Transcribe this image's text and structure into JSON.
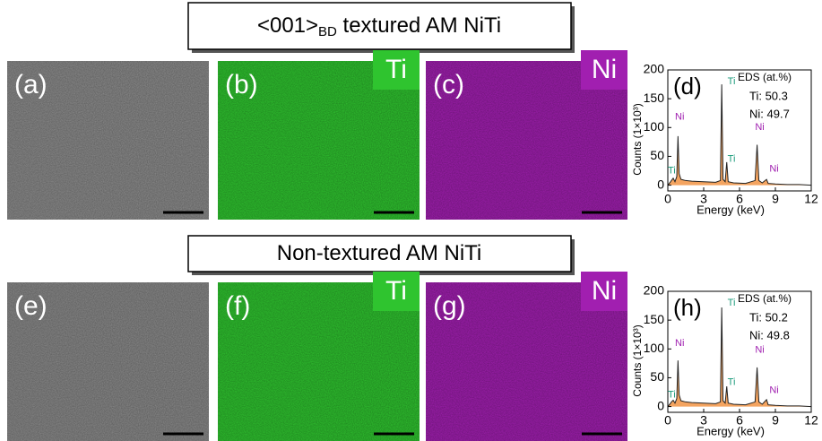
{
  "headers": [
    {
      "text": "<001>",
      "subscript": "BD",
      "rest": " textured AM NiTi"
    },
    {
      "text": "Non-textured AM NiTi"
    }
  ],
  "panels": [
    {
      "label": "(a)",
      "color": "#8c8c8c"
    },
    {
      "label": "(b)",
      "color": "#2fc42f",
      "element": "Ti"
    },
    {
      "label": "(c)",
      "color": "#a11fb0",
      "element": "Ni"
    },
    {
      "label": "(e)",
      "color": "#8a8a8a"
    },
    {
      "label": "(f)",
      "color": "#2fc42f",
      "element": "Ti"
    },
    {
      "label": "(g)",
      "color": "#a11fb0",
      "element": "Ni"
    }
  ],
  "chart_data": [
    {
      "type": "area",
      "label": "(d)",
      "legend_title": "EDS (at.%)",
      "legend_lines": [
        "Ti: 50.3",
        "Ni: 49.7"
      ],
      "xlabel": "Energy (keV)",
      "ylabel": "Counts (1×10³)",
      "xlim": [
        0,
        12
      ],
      "ylim": [
        -10,
        200
      ],
      "xticks": [
        0,
        3,
        6,
        9,
        12
      ],
      "yticks": [
        0,
        50,
        100,
        150,
        200
      ],
      "color": "#f4a460",
      "line_color": "#222222",
      "label_colors": {
        "Ti": "#1a9a7a",
        "Ni": "#a020b0"
      },
      "x": [
        0,
        0.2,
        0.3,
        0.45,
        0.6,
        0.75,
        0.85,
        0.95,
        1.1,
        1.5,
        2,
        3,
        4,
        4.4,
        4.51,
        4.62,
        4.8,
        4.93,
        5.05,
        5.5,
        6.5,
        7.3,
        7.47,
        7.62,
        7.9,
        8.26,
        8.4,
        9,
        10,
        11,
        12
      ],
      "values": [
        0,
        5,
        8,
        12,
        6,
        15,
        85,
        20,
        10,
        8,
        7,
        6,
        5,
        8,
        175,
        10,
        6,
        40,
        6,
        4,
        3,
        8,
        70,
        8,
        4,
        10,
        3,
        2,
        1,
        1,
        0
      ],
      "peak_labels": [
        {
          "text": "Ti",
          "x": 5.0,
          "y": 180
        },
        {
          "text": "Ni",
          "x": 0.6,
          "y": 118
        },
        {
          "text": "Ti",
          "x": 0.0,
          "y": 25
        },
        {
          "text": "Ti",
          "x": 5.0,
          "y": 45
        },
        {
          "text": "Ni",
          "x": 7.3,
          "y": 100
        },
        {
          "text": "Ni",
          "x": 8.5,
          "y": 28
        }
      ]
    },
    {
      "type": "area",
      "label": "(h)",
      "legend_title": "EDS (at.%)",
      "legend_lines": [
        "Ti: 50.2",
        "Ni: 49.8"
      ],
      "xlabel": "Energy (keV)",
      "ylabel": "Counts (1×10³)",
      "xlim": [
        0,
        12
      ],
      "ylim": [
        -10,
        200
      ],
      "xticks": [
        0,
        3,
        6,
        9,
        12
      ],
      "yticks": [
        0,
        50,
        100,
        150,
        200
      ],
      "color": "#f4a460",
      "line_color": "#222222",
      "label_colors": {
        "Ti": "#1a9a7a",
        "Ni": "#a020b0"
      },
      "x": [
        0,
        0.2,
        0.3,
        0.45,
        0.6,
        0.75,
        0.85,
        0.95,
        1.1,
        1.5,
        2,
        3,
        4,
        4.4,
        4.51,
        4.62,
        4.8,
        4.93,
        5.05,
        5.5,
        6.5,
        7.3,
        7.47,
        7.62,
        7.9,
        8.26,
        8.4,
        9,
        10,
        11,
        12
      ],
      "values": [
        0,
        5,
        8,
        11,
        6,
        14,
        80,
        20,
        10,
        8,
        7,
        6,
        5,
        8,
        172,
        10,
        6,
        35,
        6,
        4,
        3,
        8,
        68,
        8,
        4,
        12,
        3,
        2,
        1,
        1,
        0
      ],
      "peak_labels": [
        {
          "text": "Ti",
          "x": 5.0,
          "y": 180
        },
        {
          "text": "Ni",
          "x": 0.6,
          "y": 110
        },
        {
          "text": "Ti",
          "x": 0.0,
          "y": 20
        },
        {
          "text": "Ti",
          "x": 5.0,
          "y": 42
        },
        {
          "text": "Ni",
          "x": 7.3,
          "y": 98
        },
        {
          "text": "Ni",
          "x": 8.5,
          "y": 28
        }
      ]
    }
  ]
}
